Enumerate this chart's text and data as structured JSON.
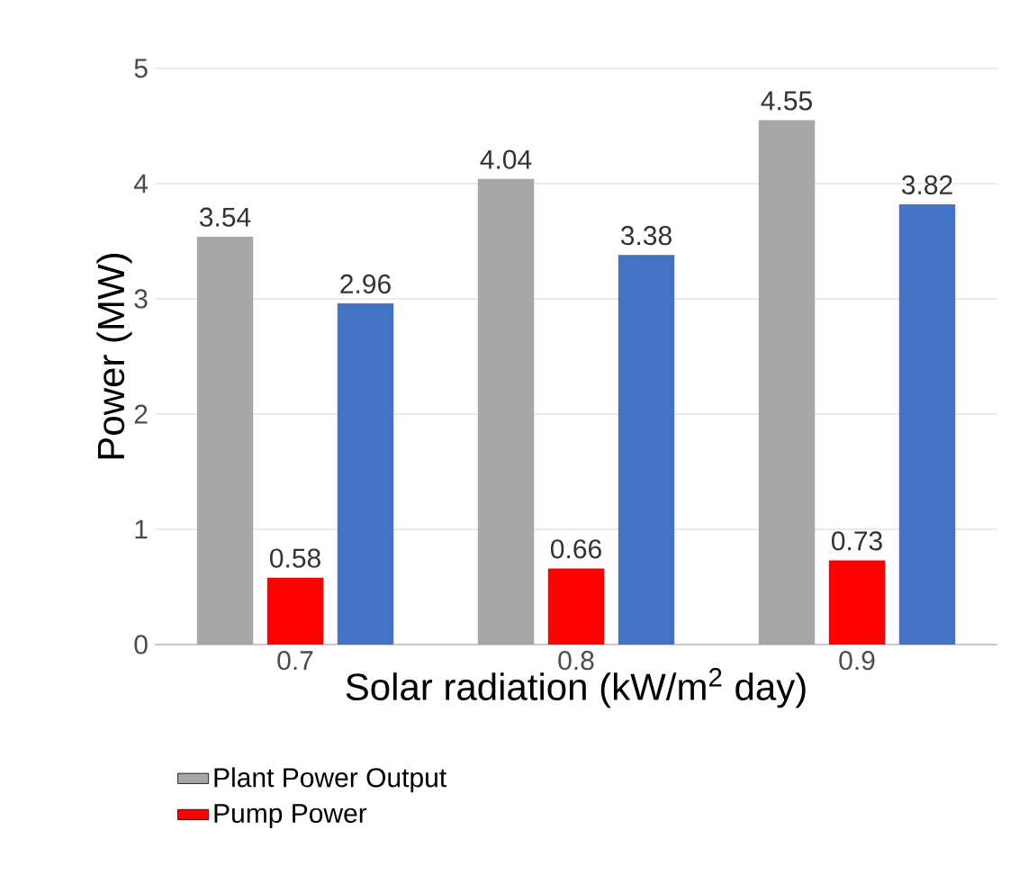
{
  "chart_data": {
    "type": "bar",
    "xlabel": "Solar radiation (kW/m$^{2}$ day)",
    "ylabel": "Power (MW)",
    "categories": [
      "0.7",
      "0.8",
      "0.9"
    ],
    "series": [
      {
        "name": "Plant Power Output",
        "color": "#a6a6a6",
        "values": [
          3.54,
          4.04,
          4.55
        ]
      },
      {
        "name": "Pump Power",
        "color": "#ff0000",
        "values": [
          0.58,
          0.66,
          0.73
        ]
      },
      {
        "color": "#4472c4",
        "values": [
          2.96,
          3.38,
          3.82
        ]
      }
    ],
    "ylim": [
      0,
      5
    ],
    "yticks": [
      0,
      1,
      2,
      3,
      4,
      5
    ],
    "grid": "y",
    "legend": "bottom",
    "data_labels": true
  }
}
